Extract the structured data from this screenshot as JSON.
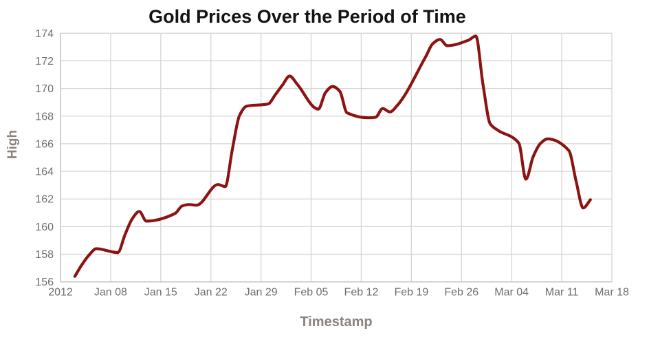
{
  "chart": {
    "title": "Gold Prices Over the Period of Time",
    "x_axis_label": "Timestamp",
    "y_axis_label": "High"
  },
  "colors": {
    "line": "#8B1412",
    "grid": "#D7D5D1",
    "axis": "#C2C0BB",
    "tick_text": "#716D69",
    "axis_title_text": "#8B837C",
    "title_text": "#151312",
    "background": "#FFFFFF"
  },
  "chart_data": {
    "type": "line",
    "title": "Gold Prices Over the Period of Time",
    "xlabel": "Timestamp",
    "ylabel": "High",
    "grid": true,
    "legend": "none",
    "line_smoothing": "monotone",
    "x_axis": {
      "tick_labels": [
        "2012",
        "Jan 08",
        "Jan 15",
        "Jan 22",
        "Jan 29",
        "Feb 05",
        "Feb 12",
        "Feb 19",
        "Feb 26",
        "Mar 04",
        "Mar 11",
        "Mar 18"
      ],
      "tick_day_offsets": [
        0,
        7,
        14,
        21,
        28,
        35,
        42,
        49,
        56,
        63,
        70,
        77
      ],
      "range_days": [
        0,
        77
      ],
      "start_date": "2012-01-01"
    },
    "y_axis": {
      "tick_labels": [
        "156",
        "158",
        "160",
        "162",
        "164",
        "166",
        "168",
        "170",
        "172",
        "174"
      ],
      "ticks": [
        156,
        158,
        160,
        162,
        164,
        166,
        168,
        170,
        172,
        174
      ],
      "range": [
        156,
        174
      ]
    },
    "series": [
      {
        "name": "High",
        "color": "#8B1412",
        "dates": [
          "2012-01-03",
          "2012-01-04",
          "2012-01-05",
          "2012-01-06",
          "2012-01-09",
          "2012-01-10",
          "2012-01-11",
          "2012-01-12",
          "2012-01-13",
          "2012-01-17",
          "2012-01-18",
          "2012-01-19",
          "2012-01-20",
          "2012-01-23",
          "2012-01-24",
          "2012-01-25",
          "2012-01-26",
          "2012-01-27",
          "2012-01-30",
          "2012-01-31",
          "2012-02-01",
          "2012-02-02",
          "2012-02-03",
          "2012-02-06",
          "2012-02-07",
          "2012-02-08",
          "2012-02-09",
          "2012-02-10",
          "2012-02-13",
          "2012-02-14",
          "2012-02-15",
          "2012-02-16",
          "2012-02-17",
          "2012-02-21",
          "2012-02-22",
          "2012-02-23",
          "2012-02-24",
          "2012-02-27",
          "2012-02-28",
          "2012-02-29",
          "2012-03-01",
          "2012-03-02",
          "2012-03-05",
          "2012-03-06",
          "2012-03-07",
          "2012-03-08",
          "2012-03-09",
          "2012-03-12",
          "2012-03-13",
          "2012-03-14",
          "2012-03-15"
        ],
        "day_offsets": [
          2,
          3,
          4,
          5,
          8,
          9,
          10,
          11,
          12,
          16,
          17,
          18,
          19,
          22,
          23,
          24,
          25,
          26,
          29,
          30,
          31,
          32,
          33,
          36,
          37,
          38,
          39,
          40,
          43,
          44,
          45,
          46,
          47,
          51,
          52,
          53,
          54,
          57,
          58,
          59,
          60,
          61,
          64,
          65,
          66,
          67,
          68,
          71,
          72,
          73,
          74
        ],
        "values": [
          156.4,
          157.25,
          157.95,
          158.4,
          158.12,
          159.4,
          160.55,
          161.1,
          160.4,
          160.95,
          161.5,
          161.6,
          161.55,
          163.05,
          162.9,
          165.6,
          168.05,
          168.72,
          168.88,
          169.55,
          170.25,
          170.9,
          170.35,
          168.5,
          169.7,
          170.15,
          169.8,
          168.25,
          167.88,
          167.92,
          168.55,
          168.3,
          168.75,
          172.3,
          173.25,
          173.55,
          173.1,
          173.5,
          173.8,
          170.3,
          167.45,
          167.0,
          166.05,
          163.43,
          165.05,
          166.0,
          166.35,
          165.5,
          163.3,
          161.35,
          161.95
        ]
      }
    ]
  }
}
